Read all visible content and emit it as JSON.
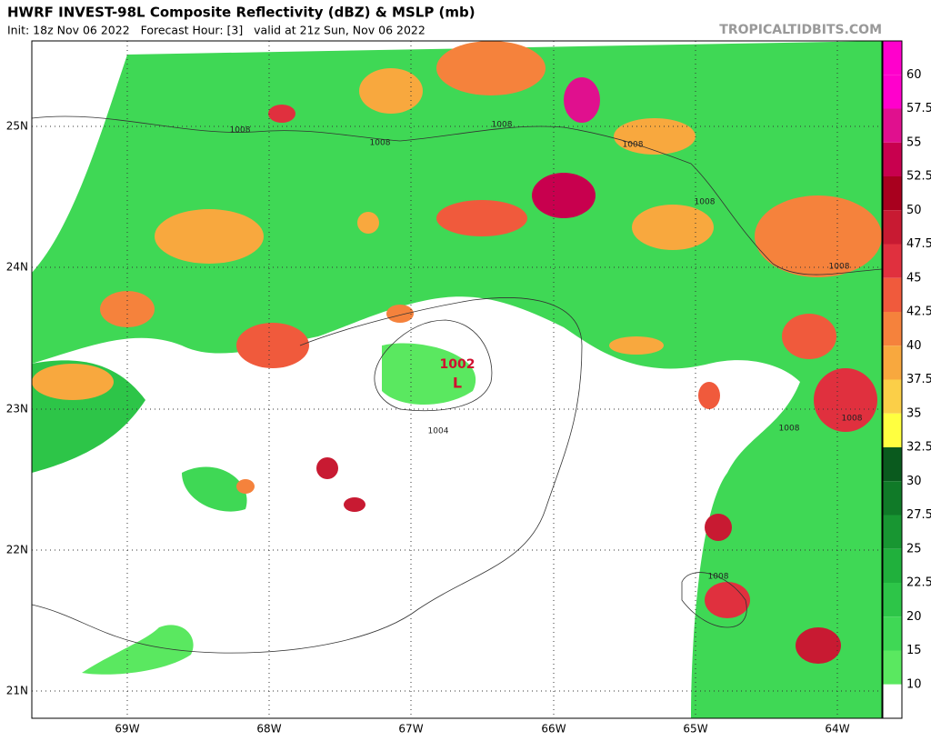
{
  "header": {
    "title": "HWRF INVEST-98L Composite Reflectivity (dBZ) & MSLP (mb)",
    "init": "Init: 18z Nov 06 2022   Forecast Hour: [3]   valid at 21z Sun, Nov 06 2022",
    "watermark": "TROPICALTIDBITS.COM"
  },
  "colorbar": {
    "labels": [
      "60",
      "57.5",
      "55",
      "52.5",
      "50",
      "47.5",
      "45",
      "42.5",
      "40",
      "37.5",
      "35",
      "32.5",
      "30",
      "27.5",
      "25",
      "22.5",
      "20",
      "15",
      "10"
    ],
    "colors": [
      "#ff00cc",
      "#e0108e",
      "#c8004e",
      "#a8001e",
      "#c81a32",
      "#e0303e",
      "#f05a3c",
      "#f5823c",
      "#f8a83e",
      "#fbcf48",
      "#ffff40",
      "#0a5a1e",
      "#107a28",
      "#189632",
      "#20b03c",
      "#2dc548",
      "#3fd855",
      "#5ae860",
      "#ffffff"
    ]
  },
  "map": {
    "lat_labels": [
      "25N",
      "24N",
      "23N",
      "22N",
      "21N"
    ],
    "lon_labels": [
      "69W",
      "68W",
      "67W",
      "66W",
      "65W",
      "64W"
    ],
    "isobar_labels": [
      "1008",
      "1008",
      "1008",
      "1008",
      "1008",
      "1008",
      "1008",
      "1008",
      "1008",
      "1004"
    ],
    "low_pressure": "1002",
    "low_symbol": "L"
  }
}
